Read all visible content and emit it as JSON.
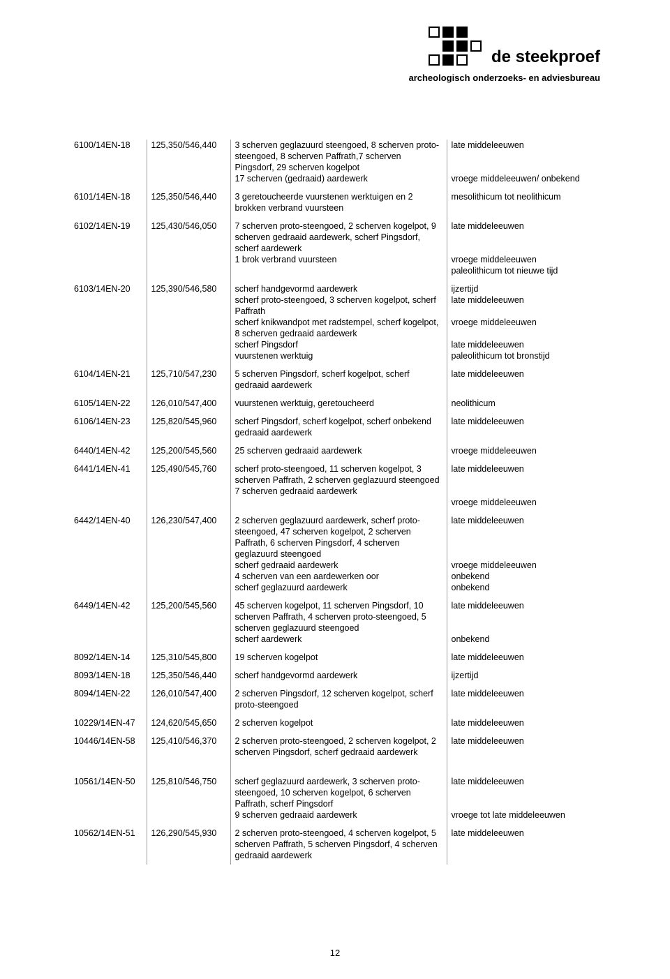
{
  "logo": {
    "brand": "de steekproef",
    "subtitle": "archeologisch onderzoeks- en adviesbureau"
  },
  "page_number": "12",
  "rows": [
    {
      "id": "6100/14EN-18",
      "coord": "125,350/546,440",
      "entries": [
        {
          "desc": "3 scherven geglazuurd steengoed, 8 scherven proto-steengoed, 8 scherven Paffrath,7 scherven Pingsdorf, 29 scherven kogelpot",
          "date": "late middeleeuwen"
        },
        {
          "desc": "17 scherven (gedraaid) aardewerk",
          "date": "vroege middeleeuwen/ onbekend"
        }
      ]
    },
    {
      "id": "6101/14EN-18",
      "coord": "125,350/546,440",
      "entries": [
        {
          "desc": "3 geretoucheerde vuurstenen werktuigen en 2 brokken verbrand vuursteen",
          "date": "mesolithicum tot neolithicum"
        }
      ]
    },
    {
      "id": "6102/14EN-19",
      "coord": "125,430/546,050",
      "entries": [
        {
          "desc": "7 scherven proto-steengoed, 2 scherven kogelpot, 9 scherven gedraaid aardewerk, scherf Pingsdorf,",
          "date": "late middeleeuwen"
        },
        {
          "desc": "scherf aardewerk",
          "date": "vroege middeleeuwen"
        },
        {
          "desc": "1 brok verbrand vuursteen",
          "date": "paleolithicum tot nieuwe tijd"
        }
      ]
    },
    {
      "id": "6103/14EN-20",
      "coord": "125,390/546,580",
      "entries": [
        {
          "desc": "scherf handgevormd aardewerk",
          "date": "ijzertijd"
        },
        {
          "desc": "scherf proto-steengoed, 3 scherven kogelpot, scherf Paffrath",
          "date": "late middeleeuwen"
        },
        {
          "desc": "scherf knikwandpot met radstempel, scherf kogelpot, 8 scherven gedraaid aardewerk",
          "date": "vroege middeleeuwen"
        },
        {
          "desc": "scherf Pingsdorf",
          "date": "late middeleeuwen"
        },
        {
          "desc": "vuurstenen werktuig",
          "date": "paleolithicum tot bronstijd"
        }
      ]
    },
    {
      "id": "6104/14EN-21",
      "coord": "125,710/547,230",
      "entries": [
        {
          "desc": "5 scherven Pingsdorf, scherf kogelpot, scherf gedraaid aardewerk",
          "date": "late middeleeuwen"
        }
      ]
    },
    {
      "id": "6105/14EN-22",
      "coord": "126,010/547,400",
      "entries": [
        {
          "desc": "vuurstenen werktuig, geretoucheerd",
          "date": "neolithicum"
        }
      ]
    },
    {
      "id": "6106/14EN-23",
      "coord": "125,820/545,960",
      "entries": [
        {
          "desc": "scherf Pingsdorf, scherf kogelpot, scherf onbekend gedraaid aardewerk",
          "date": "late middeleeuwen"
        }
      ]
    },
    {
      "id": "6440/14EN-42",
      "coord": "125,200/545,560",
      "entries": [
        {
          "desc": "25 scherven gedraaid aardewerk",
          "date": "vroege middeleeuwen"
        }
      ]
    },
    {
      "id": "6441/14EN-41",
      "coord": "125,490/545,760",
      "entries": [
        {
          "desc": "scherf proto-steengoed, 11 scherven kogelpot, 3 scherven Paffrath, 2 scherven geglazuurd steengoed",
          "date": "late middeleeuwen"
        },
        {
          "desc": "7 scherven gedraaid aardewerk",
          "date": "vroege middeleeuwen"
        }
      ]
    },
    {
      "id": "6442/14EN-40",
      "coord": "126,230/547,400",
      "entries": [
        {
          "desc": "2 scherven geglazuurd aardewerk, scherf proto-steengoed, 47 scherven kogelpot, 2 scherven Paffrath, 6 scherven Pingsdorf, 4 scherven geglazuurd steengoed",
          "date": "late middeleeuwen"
        },
        {
          "desc": "scherf gedraaid aardewerk",
          "date": "vroege middeleeuwen"
        },
        {
          "desc": "4 scherven van een aardewerken oor",
          "date": "onbekend"
        },
        {
          "desc": "scherf geglazuurd aardewerk",
          "date": "onbekend"
        }
      ]
    },
    {
      "id": "6449/14EN-42",
      "coord": "125,200/545,560",
      "entries": [
        {
          "desc": "45 scherven kogelpot, 11 scherven Pingsdorf, 10 scherven Paffrath, 4 scherven proto-steengoed, 5 scherven geglazuurd steengoed",
          "date": "late middeleeuwen"
        },
        {
          "desc": "scherf aardewerk",
          "date": "onbekend"
        }
      ]
    },
    {
      "id": "8092/14EN-14",
      "coord": "125,310/545,800",
      "entries": [
        {
          "desc": "19 scherven kogelpot",
          "date": "late middeleeuwen"
        }
      ]
    },
    {
      "id": "8093/14EN-18",
      "coord": "125,350/546,440",
      "entries": [
        {
          "desc": "scherf handgevormd aardewerk",
          "date": "ijzertijd"
        }
      ]
    },
    {
      "id": "8094/14EN-22",
      "coord": "126,010/547,400",
      "entries": [
        {
          "desc": "2 scherven Pingsdorf, 12 scherven kogelpot, scherf proto-steengoed",
          "date": "late middeleeuwen"
        }
      ]
    },
    {
      "id": "10229/14EN-47",
      "coord": "124,620/545,650",
      "entries": [
        {
          "desc": "2 scherven kogelpot",
          "date": "late middeleeuwen"
        }
      ]
    },
    {
      "id": "10446/14EN-58",
      "coord": "125,410/546,370",
      "entries": [
        {
          "desc": "2 scherven proto-steengoed, 2 scherven kogelpot, 2 scherven Pingsdorf, scherf gedraaid aardewerk",
          "date": "late middeleeuwen"
        }
      ]
    },
    {
      "id": "10561/14EN-50",
      "coord": "125,810/546,750",
      "entries": [
        {
          "desc": "scherf geglazuurd aardewerk, 3 scherven proto-steengoed, 10 scherven kogelpot, 6 scherven Paffrath, scherf Pingsdorf",
          "date": "late middeleeuwen"
        },
        {
          "desc": "9 scherven gedraaid aardewerk",
          "date": "vroege tot late middeleeuwen"
        }
      ]
    },
    {
      "id": "10562/14EN-51",
      "coord": "126,290/545,930",
      "entries": [
        {
          "desc": "2 scherven proto-steengoed, 4 scherven kogelpot, 5 scherven Paffrath, 5 scherven Pingsdorf, 4 scherven gedraaid aardewerk",
          "date": "late middeleeuwen"
        }
      ]
    }
  ]
}
